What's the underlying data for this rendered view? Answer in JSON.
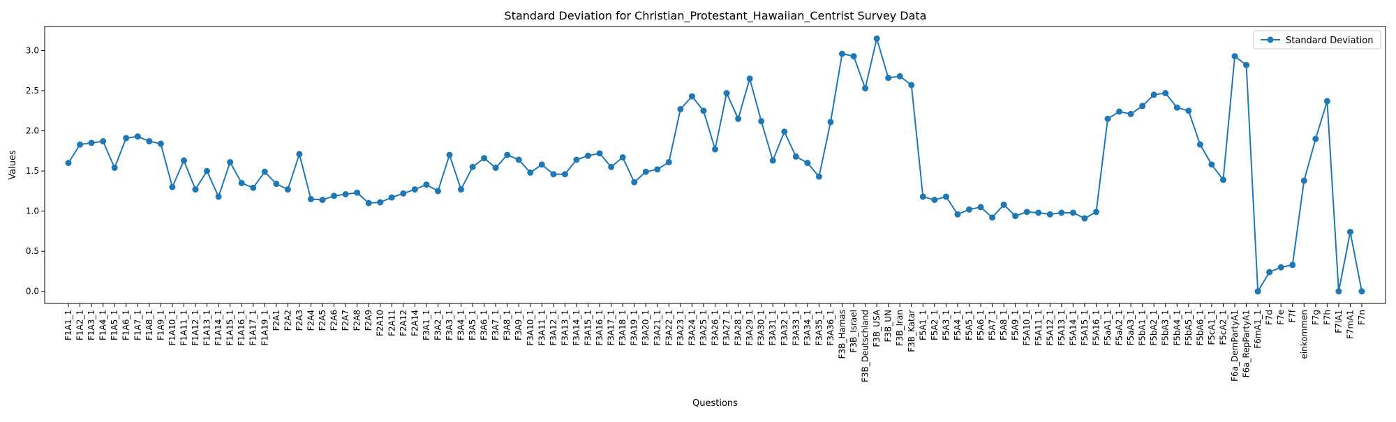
{
  "chart_data": {
    "type": "line",
    "title": "Standard Deviation for Christian_Protestant_Hawaiian_Centrist Survey Data",
    "xlabel": "Questions",
    "ylabel": "Values",
    "ylim": [
      -0.15,
      3.3
    ],
    "yticks": [
      0.0,
      0.5,
      1.0,
      1.5,
      2.0,
      2.5,
      3.0
    ],
    "ytick_labels": [
      "0.0",
      "0.5",
      "1.0",
      "1.5",
      "2.0",
      "2.5",
      "3.0"
    ],
    "grid": false,
    "legend_position": "top-right",
    "color": "#1f77b4",
    "categories": [
      "F1A1_1",
      "F1A2_1",
      "F1A3_1",
      "F1A4_1",
      "F1A5_1",
      "F1A6_1",
      "F1A7_1",
      "F1A8_1",
      "F1A9_1",
      "F1A10_1",
      "F1A11_1",
      "F1A12_1",
      "F1A13_1",
      "F1A14_1",
      "F1A15_1",
      "F1A16_1",
      "F1A17_1",
      "F1A19_1",
      "F2A1",
      "F2A2",
      "F2A3",
      "F2A4",
      "F2A5",
      "F2A6",
      "F2A7",
      "F2A8",
      "F2A9",
      "F2A10",
      "F2A11",
      "F2A12",
      "F2A14",
      "F3A1_1",
      "F3A2_1",
      "F3A3_1",
      "F3A4_1",
      "F3A5_1",
      "F3A6_1",
      "F3A7_1",
      "F3A8_1",
      "F3A9_1",
      "F3A10_1",
      "F3A11_1",
      "F3A12_1",
      "F3A13_1",
      "F3A14_1",
      "F3A15_1",
      "F3A16_1",
      "F3A17_1",
      "F3A18_1",
      "F3A19_1",
      "F3A20_1",
      "F3A21_1",
      "F3A22_1",
      "F3A23_1",
      "F3A24_1",
      "F3A25_1",
      "F3A26_1",
      "F3A27_1",
      "F3A28_1",
      "F3A29_1",
      "F3A30_1",
      "F3A31_1",
      "F3A32_1",
      "F3A33_1",
      "F3A34_1",
      "F3A35_1",
      "F3A36_1",
      "F3B_Hamas",
      "F3B_Israel",
      "F3B_Deutschland",
      "F3B_USA",
      "F3B_UN",
      "F3B_Iran",
      "F3B_Katar",
      "F5A1_1",
      "F5A2_1",
      "F5A3_1",
      "F5A4_1",
      "F5A5_1",
      "F5A6_1",
      "F5A7_1",
      "F5A8_1",
      "F5A9_1",
      "F5A10_1",
      "F5A11_1",
      "F5A12_1",
      "F5A13_1",
      "F5A14_1",
      "F5A15_1",
      "F5A16_1",
      "F5aA1_1",
      "F5aA2_1",
      "F5aA3_1",
      "F5bA1_1",
      "F5bA2_1",
      "F5bA3_1",
      "F5bA4_1",
      "F5bA5_1",
      "F5bA6_1",
      "F5cA1_1",
      "F5cA2_1",
      "F6a_DemPartyA1",
      "F6a_RepPartyA1",
      "F6mA1_1",
      "F7d",
      "F7e",
      "F7f",
      "einkommen",
      "F7g",
      "F7h",
      "F7lA1",
      "F7mA1",
      "F7n"
    ],
    "series": [
      {
        "name": "Standard Deviation",
        "values": [
          1.6,
          1.83,
          1.85,
          1.87,
          1.54,
          1.91,
          1.93,
          1.87,
          1.84,
          1.3,
          1.63,
          1.27,
          1.5,
          1.18,
          1.61,
          1.35,
          1.29,
          1.49,
          1.34,
          1.27,
          1.71,
          1.15,
          1.14,
          1.19,
          1.21,
          1.23,
          1.1,
          1.11,
          1.17,
          1.22,
          1.27,
          1.33,
          1.25,
          1.7,
          1.27,
          1.55,
          1.66,
          1.54,
          1.7,
          1.64,
          1.48,
          1.58,
          1.46,
          1.46,
          1.64,
          1.69,
          1.72,
          1.55,
          1.67,
          1.36,
          1.49,
          1.52,
          1.61,
          2.27,
          2.43,
          2.25,
          1.77,
          2.47,
          2.15,
          2.65,
          2.12,
          1.63,
          1.99,
          1.68,
          1.6,
          1.43,
          2.11,
          2.96,
          2.93,
          2.53,
          3.15,
          2.66,
          2.68,
          2.57,
          1.18,
          1.14,
          1.18,
          0.96,
          1.02,
          1.05,
          0.92,
          1.08,
          0.94,
          0.99,
          0.98,
          0.96,
          0.98,
          0.98,
          0.91,
          0.99,
          2.15,
          2.24,
          2.21,
          2.31,
          2.45,
          2.47,
          2.29,
          2.25,
          1.83,
          1.58,
          1.39,
          2.93,
          2.82,
          0.0,
          0.24,
          0.3,
          0.33,
          1.38,
          1.9,
          2.37,
          0.0,
          0.74,
          0.0
        ]
      }
    ]
  }
}
